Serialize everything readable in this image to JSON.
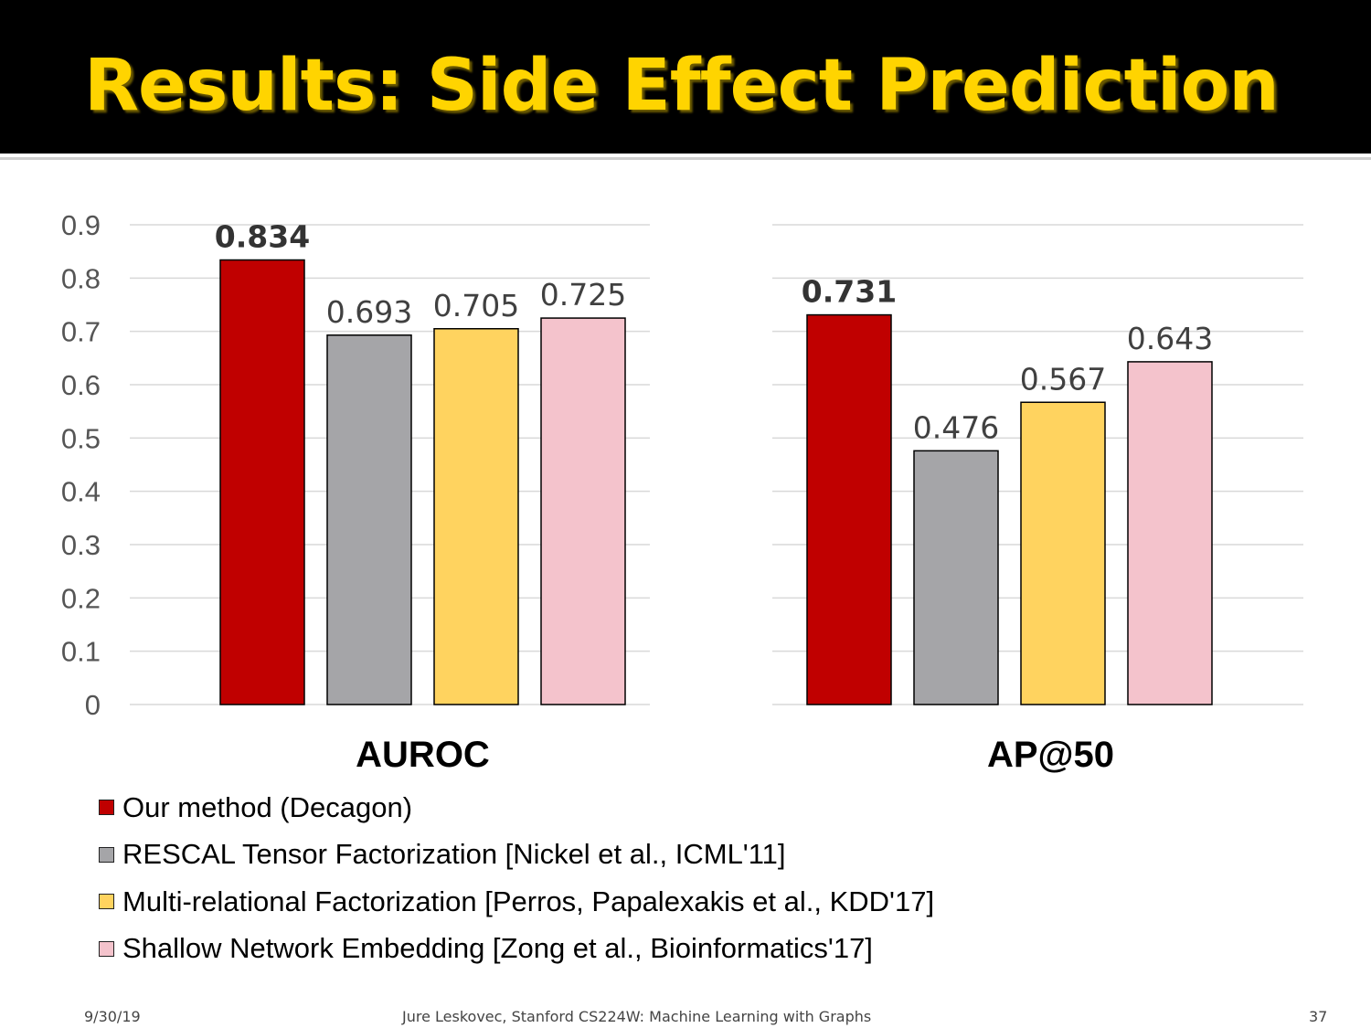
{
  "slide": {
    "title": "Results: Side Effect Prediction",
    "footer_date": "9/30/19",
    "footer_center": "Jure Leskovec, Stanford CS224W: Machine Learning with Graphs",
    "page_number": "37"
  },
  "colors": {
    "title": "#ffd400",
    "series": [
      "#c00000",
      "#a5a5a8",
      "#ffd35f",
      "#f4c3cc"
    ]
  },
  "chart_data": {
    "type": "bar",
    "ylim": [
      0,
      0.9
    ],
    "yticks": [
      "0",
      "0.1",
      "0.2",
      "0.3",
      "0.4",
      "0.5",
      "0.6",
      "0.7",
      "0.8",
      "0.9"
    ],
    "grid": true,
    "legend_position": "bottom-left",
    "categories": [
      "AUROC",
      "AP@50"
    ],
    "series": [
      {
        "name": "Our method (Decagon)",
        "values": [
          0.834,
          0.731
        ],
        "labels": [
          "0.834",
          "0.731"
        ],
        "bold": true
      },
      {
        "name": "RESCAL Tensor Factorization [Nickel et al., ICML'11]",
        "values": [
          0.693,
          0.476
        ],
        "labels": [
          "0.693",
          "0.476"
        ]
      },
      {
        "name": "Multi-relational Factorization [Perros, Papalexakis et al., KDD'17]",
        "values": [
          0.705,
          0.567
        ],
        "labels": [
          "0.705",
          "0.567"
        ]
      },
      {
        "name": "Shallow Network Embedding [Zong et al., Bioinformatics'17]",
        "values": [
          0.725,
          0.643
        ],
        "labels": [
          "0.725",
          "0.643"
        ]
      }
    ]
  }
}
